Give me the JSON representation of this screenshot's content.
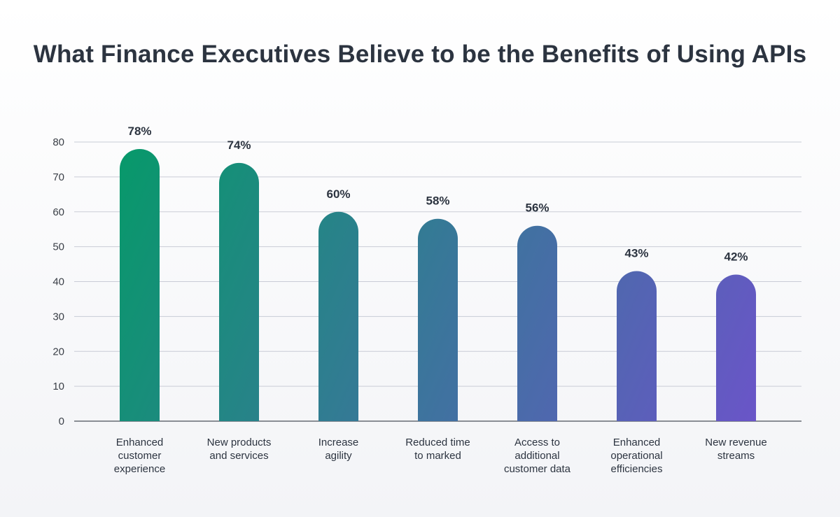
{
  "chart_data": {
    "type": "bar",
    "title": "What Finance Executives Believe to be the Benefits of Using APIs",
    "categories": [
      [
        "Enhanced",
        "customer",
        "experience"
      ],
      [
        "New products",
        "and services"
      ],
      [
        "Increase",
        "agility"
      ],
      [
        "Reduced time",
        "to marked"
      ],
      [
        "Access to",
        "additional",
        "customer data"
      ],
      [
        "Enhanced",
        "operational",
        "efficiencies"
      ],
      [
        "New revenue",
        "streams"
      ]
    ],
    "values": [
      78,
      74,
      60,
      58,
      56,
      43,
      42
    ],
    "data_labels": [
      "78%",
      "74%",
      "60%",
      "58%",
      "56%",
      "43%",
      "42%"
    ],
    "xlabel": "",
    "ylabel": "",
    "ylim": [
      0,
      80
    ],
    "yticks": [
      0,
      10,
      20,
      30,
      40,
      50,
      60,
      70,
      80
    ],
    "grid": true,
    "colors": {
      "gradient_start": "#07996a",
      "gradient_end": "#6a55c8",
      "grid": "#c9ccd6",
      "axis": "#4a4f57",
      "title": "#2c3440"
    }
  }
}
